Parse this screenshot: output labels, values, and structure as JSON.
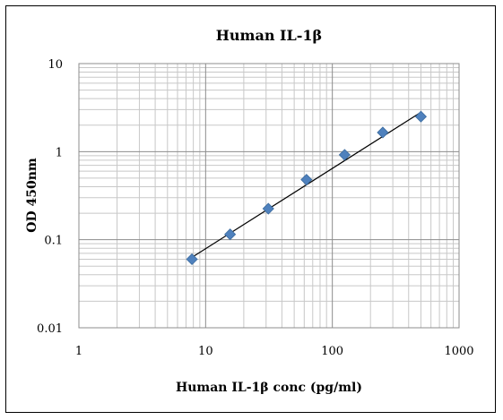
{
  "chart_data": {
    "type": "scatter",
    "title": "Human IL-1β",
    "xlabel": "Human IL-1β conc (pg/ml)",
    "ylabel": "OD 450nm",
    "x_scale": "log",
    "y_scale": "log",
    "xlim": [
      1,
      1000
    ],
    "ylim": [
      0.01,
      10
    ],
    "x_ticks": [
      "1",
      "10",
      "100",
      "1000"
    ],
    "y_ticks": [
      "0.01",
      "0.1",
      "1",
      "10"
    ],
    "grid": true,
    "legend": "none",
    "series": [
      {
        "x": [
          7.8,
          15.6,
          31.25,
          62.5,
          125,
          250,
          500
        ],
        "y": [
          0.06,
          0.115,
          0.225,
          0.48,
          0.92,
          1.65,
          2.5
        ],
        "color": "#4f81bd",
        "marker": "diamond"
      }
    ],
    "trendline": {
      "x": [
        7.8,
        500
      ],
      "y": [
        0.063,
        2.8
      ],
      "color": "#000000"
    }
  }
}
